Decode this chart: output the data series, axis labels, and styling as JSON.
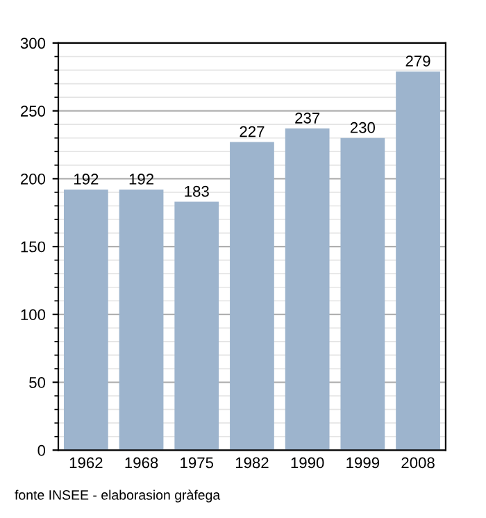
{
  "chart_data": {
    "type": "bar",
    "categories": [
      "1962",
      "1968",
      "1975",
      "1982",
      "1990",
      "1999",
      "2008"
    ],
    "values": [
      192,
      192,
      183,
      227,
      237,
      230,
      279
    ],
    "color": "#9db4cd",
    "ylim": [
      0,
      300
    ],
    "yticks": [
      0,
      50,
      100,
      150,
      200,
      250,
      300
    ],
    "grid": "y",
    "data_labels": true,
    "annotations": [
      "fonte INSEE - elaborasion gràfega"
    ]
  }
}
